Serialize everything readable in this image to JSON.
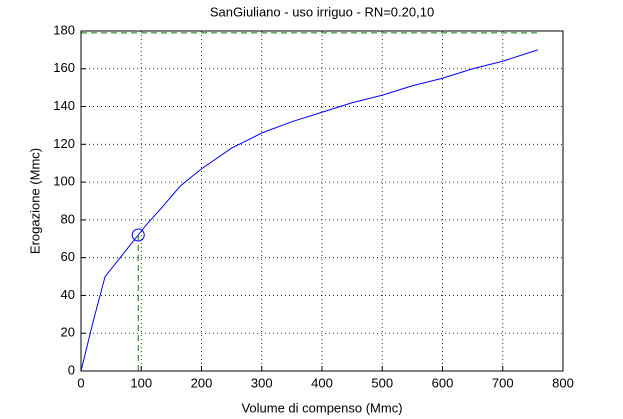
{
  "chart_data": {
    "type": "line",
    "title": "SanGiuliano  -  uso irriguo  -   RN=0.20,10",
    "x_label": "Volume di compenso (Mmc)",
    "y_label": "Erogazione (Mmc)",
    "xlim": [
      0,
      800
    ],
    "ylim": [
      0,
      180
    ],
    "xticks": [
      0,
      100,
      200,
      300,
      400,
      500,
      600,
      700,
      800
    ],
    "yticks": [
      0,
      20,
      40,
      60,
      80,
      100,
      120,
      140,
      160,
      180
    ],
    "grid": true,
    "series": [
      {
        "color": "#0000ff",
        "style": "solid",
        "marker": "none",
        "x": [
          0,
          20,
          40,
          60,
          80,
          95,
          110,
          130,
          165,
          200,
          250,
          300,
          350,
          400,
          450,
          500,
          550,
          600,
          650,
          700,
          758
        ],
        "values": [
          0,
          26,
          50,
          58,
          66,
          72,
          78,
          85,
          98,
          107,
          118,
          126,
          132,
          137,
          142,
          146,
          151,
          155,
          160,
          164,
          170
        ]
      },
      {
        "color": "#008000",
        "style": "dashed",
        "marker": "none",
        "x": [
          95,
          95
        ],
        "values": [
          72,
          0
        ]
      },
      {
        "color": "#008000",
        "style": "dashed",
        "marker": "none",
        "x": [
          0,
          760
        ],
        "values": [
          179,
          179
        ]
      },
      {
        "color": "#0000ff",
        "style": "none",
        "marker": "circle",
        "x": [
          95
        ],
        "values": [
          72
        ]
      }
    ]
  }
}
